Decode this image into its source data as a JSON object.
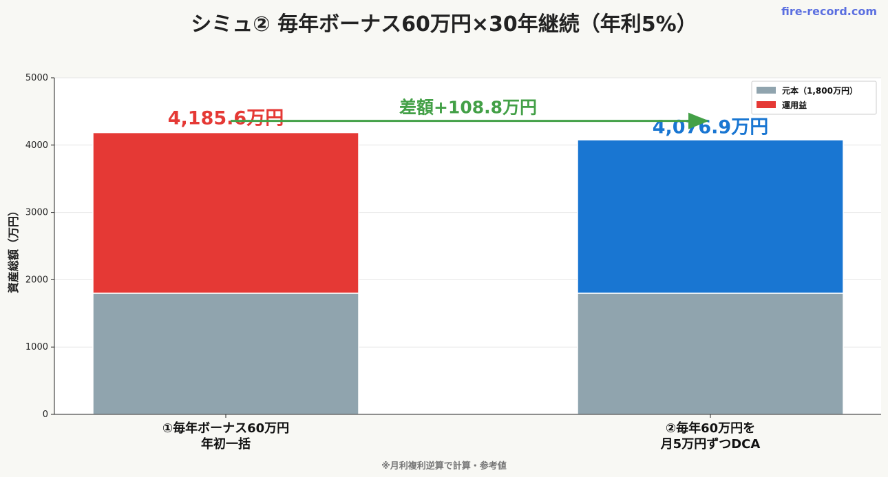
{
  "title": "シミュ② 毎年ボーナス60万円×30年継続（年利5%）",
  "brand": "fire-record.com",
  "footnote": "※月利複利逆算で計算・参考値",
  "colors": {
    "principal": "#90a4ae",
    "gain": "#e53935",
    "dca": "#1976d2",
    "diff": "#43a047"
  },
  "chart_data": {
    "type": "bar",
    "stacked": true,
    "categories": [
      [
        "①毎年ボーナス60万円",
        "年初一括"
      ],
      [
        "②毎年60万円を",
        "月5万円ずつDCA"
      ]
    ],
    "series": [
      {
        "name": "元本（1,800万円）",
        "values": [
          1800,
          1800
        ]
      },
      {
        "name": "運用益",
        "values": [
          2385.6,
          2276.9
        ]
      }
    ],
    "totals": [
      4185.6,
      4076.9
    ],
    "total_labels": [
      "4,185.6万円",
      "4,076.9万円"
    ],
    "difference_label": "差額+108.8万円",
    "ylabel": "資産総額（万円）",
    "ylim": [
      0,
      5000
    ],
    "yticks": [
      0,
      1000,
      2000,
      3000,
      4000,
      5000
    ],
    "grid": true,
    "legend": "top-right"
  }
}
